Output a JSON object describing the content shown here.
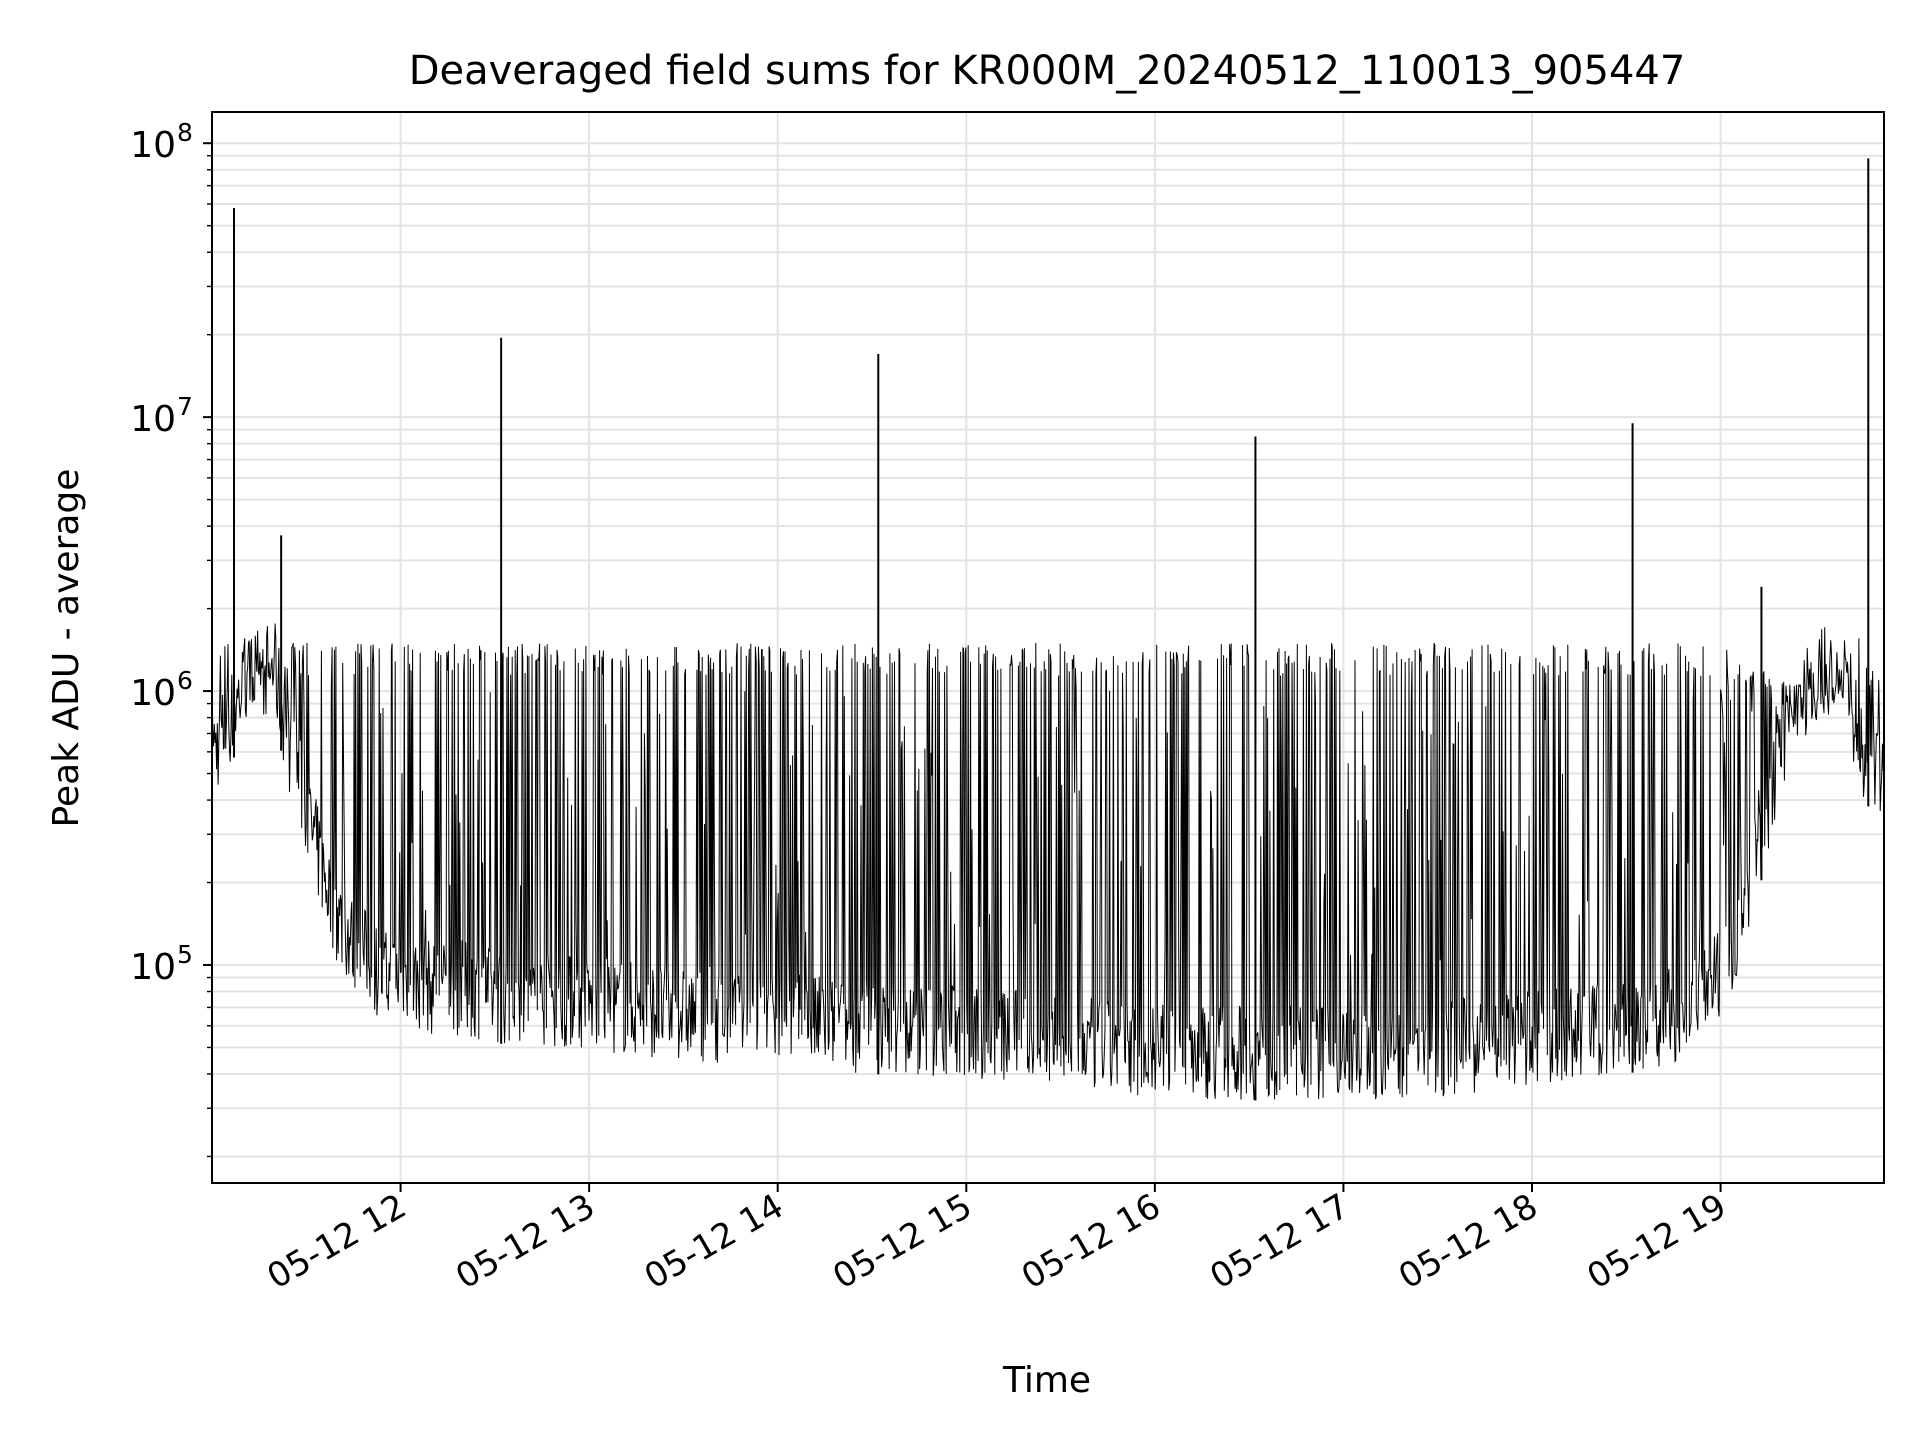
{
  "chart_data": {
    "type": "line",
    "title": "Deaveraged field sums for KR000M_20240512_110013_905447",
    "xlabel": "Time",
    "ylabel": "Peak ADU - average",
    "yscale": "log",
    "ylim": [
      16000,
      130000000
    ],
    "xlim": [
      "2024-05-12 11:00",
      "2024-05-12 19:52"
    ],
    "grid": true,
    "line_color": "#000000",
    "x_ticks": [
      {
        "t": "2024-05-12 12:00",
        "label": "05-12 12"
      },
      {
        "t": "2024-05-12 13:00",
        "label": "05-12 13"
      },
      {
        "t": "2024-05-12 14:00",
        "label": "05-12 14"
      },
      {
        "t": "2024-05-12 15:00",
        "label": "05-12 15"
      },
      {
        "t": "2024-05-12 16:00",
        "label": "05-12 16"
      },
      {
        "t": "2024-05-12 17:00",
        "label": "05-12 17"
      },
      {
        "t": "2024-05-12 18:00",
        "label": "05-12 18"
      },
      {
        "t": "2024-05-12 19:00",
        "label": "05-12 19"
      }
    ],
    "y_ticks": [
      {
        "value": 100000,
        "base": "10",
        "exp": "5"
      },
      {
        "value": 1000000,
        "base": "10",
        "exp": "6"
      },
      {
        "value": 10000000,
        "base": "10",
        "exp": "7"
      },
      {
        "value": 100000000,
        "base": "10",
        "exp": "8"
      }
    ],
    "series": [
      {
        "x": [
          "2024-05-12 11:00",
          "2024-05-12 11:05",
          "2024-05-12 11:10",
          "2024-05-12 11:15",
          "2024-05-12 11:20",
          "2024-05-12 11:25",
          "2024-05-12 11:30",
          "2024-05-12 11:35",
          "2024-05-12 11:40",
          "2024-05-12 11:45",
          "2024-05-12 11:50",
          "2024-05-12 11:55",
          "2024-05-12 12:00",
          "2024-05-12 12:10",
          "2024-05-12 12:20",
          "2024-05-12 12:30",
          "2024-05-12 12:40",
          "2024-05-12 12:50",
          "2024-05-12 13:00",
          "2024-05-12 13:30",
          "2024-05-12 14:00",
          "2024-05-12 14:30",
          "2024-05-12 15:00",
          "2024-05-12 15:30",
          "2024-05-12 16:00",
          "2024-05-12 16:30",
          "2024-05-12 17:00",
          "2024-05-12 17:30",
          "2024-05-12 18:00",
          "2024-05-12 18:30",
          "2024-05-12 18:50",
          "2024-05-12 19:00",
          "2024-05-12 19:05",
          "2024-05-12 19:10",
          "2024-05-12 19:15",
          "2024-05-12 19:20",
          "2024-05-12 19:25",
          "2024-05-12 19:30",
          "2024-05-12 19:35",
          "2024-05-12 19:40",
          "2024-05-12 19:45",
          "2024-05-12 19:50"
        ],
        "low": [
          400000,
          500000,
          700000,
          800000,
          800000,
          400000,
          250000,
          150000,
          100000,
          80000,
          70000,
          60000,
          60000,
          55000,
          55000,
          52000,
          50000,
          50000,
          48000,
          45000,
          42000,
          40000,
          38000,
          35000,
          33000,
          32000,
          32000,
          33000,
          36000,
          40000,
          45000,
          60000,
          90000,
          150000,
          250000,
          400000,
          600000,
          750000,
          800000,
          700000,
          400000,
          350000
        ],
        "high": [
          1500000,
          1600000,
          1600000,
          1500000,
          1500000,
          1500000,
          1500000,
          1500000,
          1500000,
          1500000,
          1500000,
          1500000,
          1500000,
          1500000,
          1500000,
          1500000,
          1500000,
          1500000,
          1500000,
          1500000,
          1500000,
          1500000,
          1500000,
          1500000,
          1500000,
          1500000,
          1500000,
          1500000,
          1500000,
          1500000,
          1500000,
          1500000,
          1400000,
          1300000,
          1200000,
          1100000,
          1000000,
          1000000,
          1100000,
          1500000,
          1600000,
          1300000
        ]
      }
    ],
    "spikes": [
      {
        "t": "2024-05-12 11:07",
        "value": 58000000
      },
      {
        "t": "2024-05-12 11:22",
        "value": 3700000
      },
      {
        "t": "2024-05-12 12:32",
        "value": 19500000
      },
      {
        "t": "2024-05-12 14:32",
        "value": 17000000
      },
      {
        "t": "2024-05-12 16:32",
        "value": 8500000
      },
      {
        "t": "2024-05-12 18:32",
        "value": 9500000
      },
      {
        "t": "2024-05-12 19:13",
        "value": 2400000
      },
      {
        "t": "2024-05-12 19:47",
        "value": 88000000
      }
    ]
  }
}
